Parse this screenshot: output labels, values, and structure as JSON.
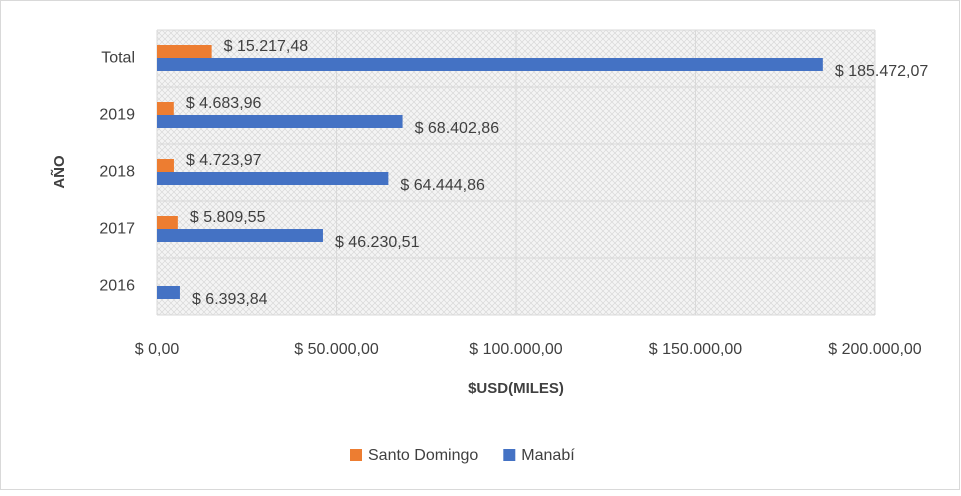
{
  "chart_data": {
    "type": "barh",
    "categories": [
      "Total",
      "2019",
      "2018",
      "2017",
      "2016"
    ],
    "series": [
      {
        "name": "Santo Domingo",
        "color": "#ed7d31",
        "values": [
          15217.48,
          4683.96,
          4723.97,
          5809.55,
          null
        ],
        "value_labels": [
          "$ 15.217,48",
          "$ 4.683,96",
          "$ 4.723,97",
          "$ 5.809,55",
          null
        ]
      },
      {
        "name": "Manabí",
        "color": "#4472c4",
        "values": [
          185472.07,
          68402.86,
          64444.86,
          46230.51,
          6393.84
        ],
        "value_labels": [
          "$ 185.472,07",
          "$ 68.402,86",
          "$ 64.444,86",
          "$ 46.230,51",
          "$ 6.393,84"
        ]
      }
    ],
    "xlim": [
      0,
      200000
    ],
    "xticks": [
      {
        "value": 0,
        "label": "$ 0,00"
      },
      {
        "value": 50000,
        "label": "$ 50.000,00"
      },
      {
        "value": 100000,
        "label": "$ 100.000,00"
      },
      {
        "value": 150000,
        "label": "$ 150.000,00"
      },
      {
        "value": 200000,
        "label": "$ 200.000,00"
      }
    ],
    "xlabel": "$USD(MILES)",
    "ylabel": "AÑO",
    "grid": true,
    "legend": "bottom"
  }
}
